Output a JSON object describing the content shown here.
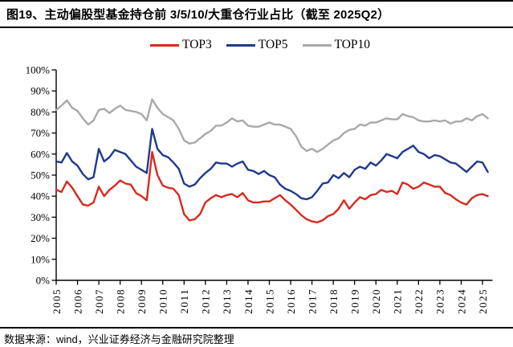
{
  "header": {
    "title": "图19、主动偏股型基金持仓前 3/5/10/大重仓行业占比（截至 2025Q2）"
  },
  "footer": {
    "source": "数据来源：wind，兴业证券经济与金融研究院整理"
  },
  "chart_data": {
    "type": "line",
    "title": "图19、主动偏股型基金持仓前 3/5/10/大重仓行业占比（截至 2025Q2）",
    "frequency": "quarterly",
    "x_start": "2005Q1",
    "x_end": "2025Q2",
    "ylim": [
      0,
      100
    ],
    "grid": false,
    "legend_position": "top",
    "y_tick_labels": [
      "0%",
      "10%",
      "20%",
      "30%",
      "40%",
      "50%",
      "60%",
      "70%",
      "80%",
      "90%",
      "100%"
    ],
    "x_tick_labels": [
      "2005",
      "2006",
      "2007",
      "2008",
      "2009",
      "2010",
      "2011",
      "2012",
      "2013",
      "2014",
      "2015",
      "2016",
      "2017",
      "2018",
      "2019",
      "2020",
      "2021",
      "2022",
      "2023",
      "2024",
      "2025"
    ],
    "series": [
      {
        "name": "TOP3",
        "color": "#d8291f",
        "values": [
          43,
          42,
          47,
          44,
          40,
          36,
          35.5,
          37,
          44.5,
          40,
          43,
          45,
          47.5,
          46,
          45.5,
          41.5,
          40,
          38,
          61,
          50,
          45,
          44,
          43.5,
          40.5,
          31.5,
          28.5,
          29,
          31.5,
          37,
          39,
          40.5,
          39.5,
          40.5,
          41,
          39.5,
          41.5,
          38,
          37,
          37,
          37.5,
          37.5,
          39,
          40.5,
          38,
          36,
          33.5,
          31,
          29,
          28,
          27.5,
          28.5,
          30.5,
          31.5,
          34,
          38,
          34,
          37,
          39.5,
          38.5,
          40.5,
          41,
          43,
          42,
          42.5,
          41,
          46.5,
          45.5,
          43.5,
          44.5,
          46.5,
          45.5,
          44.5,
          44.5,
          41.5,
          40.5,
          38.5,
          37,
          36,
          39,
          40.5,
          41,
          40
        ]
      },
      {
        "name": "TOP5",
        "color": "#1e3a8c",
        "values": [
          56.5,
          56,
          60.5,
          56.5,
          54.5,
          50.5,
          48,
          49,
          62.5,
          56.5,
          58.5,
          62,
          61,
          60,
          57,
          54,
          52.5,
          51,
          72,
          62.5,
          59.5,
          58.5,
          56,
          53,
          46,
          44.5,
          45.5,
          48.5,
          51,
          53,
          56,
          55.5,
          55.5,
          54,
          55.5,
          56.5,
          52.5,
          52,
          50.5,
          52,
          50,
          49,
          45.5,
          43.5,
          42.5,
          41,
          39,
          38.5,
          39.5,
          42.5,
          46,
          46.5,
          50,
          48.5,
          51,
          49,
          52.5,
          54,
          53,
          56,
          54.5,
          57,
          60,
          59,
          58,
          61,
          62.5,
          64,
          61,
          60,
          58,
          59.5,
          59,
          57.5,
          56,
          55.5,
          53.5,
          51.5,
          54,
          56.5,
          56,
          51.5
        ]
      },
      {
        "name": "TOP10",
        "color": "#a9a9a9",
        "values": [
          81,
          83,
          85.5,
          82,
          80.5,
          77,
          74,
          76,
          81,
          81.5,
          79.5,
          81.5,
          83,
          81,
          80.5,
          80,
          79,
          76,
          86,
          82,
          79,
          77.5,
          76,
          72,
          66.5,
          65,
          65.5,
          67.5,
          69.5,
          71,
          73.5,
          73.5,
          75,
          77,
          75.5,
          76,
          73.5,
          73,
          73,
          74,
          75,
          74,
          74,
          73,
          72,
          68.5,
          63.5,
          61.5,
          62.5,
          61,
          62.5,
          64.5,
          66.5,
          67.5,
          70,
          71.5,
          72,
          74,
          73.5,
          75,
          75,
          76,
          77,
          76.5,
          76.5,
          79,
          78,
          77.5,
          76,
          75.5,
          75.5,
          76,
          75.5,
          76,
          74.5,
          75.5,
          75.5,
          77,
          76,
          78,
          79,
          77
        ]
      }
    ]
  }
}
